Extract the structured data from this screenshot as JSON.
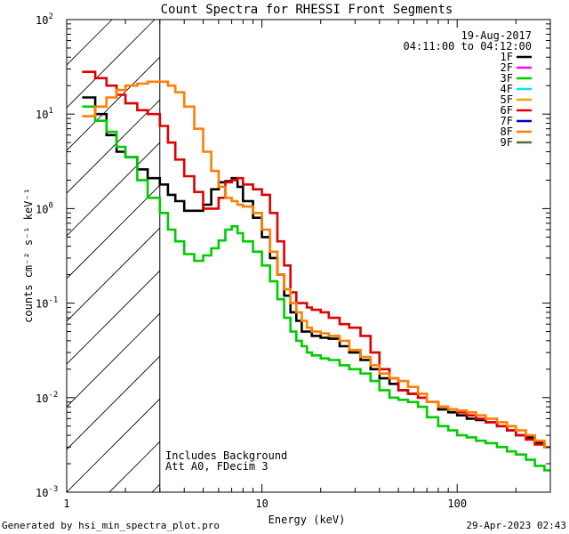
{
  "chart_data": {
    "type": "line",
    "title": "Count Spectra for RHESSI Front Segments",
    "xlabel": "Energy (keV)",
    "ylabel": "counts cm⁻² s⁻¹ keV⁻¹",
    "x_scale": "log",
    "y_scale": "log",
    "xlim": [
      1,
      300
    ],
    "ylim": [
      0.001,
      100
    ],
    "x_ticks": [
      {
        "value": 1,
        "label": "1"
      },
      {
        "value": 10,
        "label": "10"
      },
      {
        "value": 100,
        "label": "100"
      }
    ],
    "y_ticks": [
      {
        "value": 0.001,
        "base": "10",
        "exp": "-3"
      },
      {
        "value": 0.01,
        "base": "10",
        "exp": "-2"
      },
      {
        "value": 0.1,
        "base": "10",
        "exp": "-1"
      },
      {
        "value": 1,
        "base": "10",
        "exp": "0"
      },
      {
        "value": 10,
        "base": "10",
        "exp": "1"
      },
      {
        "value": 100,
        "base": "10",
        "exp": "2"
      }
    ],
    "attenuated_region": {
      "x_max": 3,
      "style": "hatched"
    },
    "date": "19-Aug-2017",
    "time_range": "04:11:00 to 04:12:00",
    "annotations": [
      "Includes Background",
      "Att A0, FDecim 3"
    ],
    "legend": [
      {
        "label": "1F",
        "color": "#000000"
      },
      {
        "label": "2F",
        "color": "#ff00ff"
      },
      {
        "label": "3F",
        "color": "#00cc00"
      },
      {
        "label": "4F",
        "color": "#00e5ee"
      },
      {
        "label": "5F",
        "color": "#f5a300"
      },
      {
        "label": "6F",
        "color": "#e00000"
      },
      {
        "label": "7F",
        "color": "#0000cc"
      },
      {
        "label": "8F",
        "color": "#ff7f00"
      },
      {
        "label": "9F",
        "color": "#556b2f"
      }
    ],
    "series": [
      {
        "name": "1F",
        "color": "#000000",
        "points": [
          [
            1.2,
            15
          ],
          [
            1.4,
            10
          ],
          [
            1.6,
            6
          ],
          [
            1.8,
            4
          ],
          [
            2,
            3.5
          ],
          [
            2.3,
            2.6
          ],
          [
            2.6,
            2.1
          ],
          [
            3,
            1.8
          ],
          [
            3.3,
            1.4
          ],
          [
            3.6,
            1.2
          ],
          [
            4,
            0.95
          ],
          [
            4.5,
            0.95
          ],
          [
            5,
            1.1
          ],
          [
            5.5,
            1.6
          ],
          [
            6,
            1.9
          ],
          [
            6.5,
            1.95
          ],
          [
            7,
            2.1
          ],
          [
            7.5,
            1.7
          ],
          [
            8,
            1.2
          ],
          [
            9,
            0.8
          ],
          [
            10,
            0.5
          ],
          [
            11,
            0.3
          ],
          [
            12,
            0.2
          ],
          [
            13,
            0.12
          ],
          [
            14,
            0.08
          ],
          [
            15,
            0.065
          ],
          [
            16,
            0.05
          ],
          [
            17,
            0.05
          ],
          [
            18,
            0.045
          ],
          [
            20,
            0.043
          ],
          [
            22,
            0.042
          ],
          [
            25,
            0.035
          ],
          [
            28,
            0.03
          ],
          [
            32,
            0.025
          ],
          [
            36,
            0.02
          ],
          [
            40,
            0.016
          ],
          [
            45,
            0.014
          ],
          [
            50,
            0.012
          ],
          [
            56,
            0.011
          ],
          [
            63,
            0.01
          ],
          [
            70,
            0.009
          ],
          [
            80,
            0.0075
          ],
          [
            90,
            0.007
          ],
          [
            100,
            0.0065
          ],
          [
            112,
            0.006
          ],
          [
            125,
            0.0058
          ],
          [
            140,
            0.0055
          ],
          [
            160,
            0.005
          ],
          [
            180,
            0.0045
          ],
          [
            200,
            0.004
          ],
          [
            225,
            0.0038
          ],
          [
            250,
            0.0033
          ],
          [
            280,
            0.003
          ]
        ]
      },
      {
        "name": "3F",
        "color": "#00cc00",
        "points": [
          [
            1.2,
            12
          ],
          [
            1.4,
            8.5
          ],
          [
            1.6,
            6.5
          ],
          [
            1.8,
            4.5
          ],
          [
            2,
            3.5
          ],
          [
            2.3,
            2
          ],
          [
            2.6,
            1.3
          ],
          [
            3,
            0.9
          ],
          [
            3.3,
            0.6
          ],
          [
            3.6,
            0.45
          ],
          [
            4,
            0.33
          ],
          [
            4.5,
            0.28
          ],
          [
            5,
            0.32
          ],
          [
            5.5,
            0.38
          ],
          [
            6,
            0.46
          ],
          [
            6.5,
            0.6
          ],
          [
            7,
            0.65
          ],
          [
            7.5,
            0.55
          ],
          [
            8,
            0.45
          ],
          [
            9,
            0.35
          ],
          [
            10,
            0.25
          ],
          [
            11,
            0.17
          ],
          [
            12,
            0.11
          ],
          [
            13,
            0.07
          ],
          [
            14,
            0.05
          ],
          [
            15,
            0.04
          ],
          [
            16,
            0.035
          ],
          [
            17,
            0.03
          ],
          [
            18,
            0.028
          ],
          [
            20,
            0.026
          ],
          [
            22,
            0.025
          ],
          [
            25,
            0.022
          ],
          [
            28,
            0.02
          ],
          [
            32,
            0.018
          ],
          [
            36,
            0.015
          ],
          [
            40,
            0.012
          ],
          [
            45,
            0.01
          ],
          [
            50,
            0.0095
          ],
          [
            56,
            0.009
          ],
          [
            63,
            0.008
          ],
          [
            70,
            0.0062
          ],
          [
            80,
            0.005
          ],
          [
            90,
            0.0045
          ],
          [
            100,
            0.004
          ],
          [
            112,
            0.0038
          ],
          [
            125,
            0.0035
          ],
          [
            140,
            0.0033
          ],
          [
            160,
            0.003
          ],
          [
            180,
            0.0027
          ],
          [
            200,
            0.0025
          ],
          [
            225,
            0.0022
          ],
          [
            250,
            0.0019
          ],
          [
            280,
            0.0017
          ]
        ]
      },
      {
        "name": "6F",
        "color": "#e00000",
        "points": [
          [
            1.2,
            28
          ],
          [
            1.4,
            24
          ],
          [
            1.6,
            20
          ],
          [
            1.8,
            16
          ],
          [
            2,
            13
          ],
          [
            2.3,
            11
          ],
          [
            2.6,
            10
          ],
          [
            3,
            7.5
          ],
          [
            3.3,
            5
          ],
          [
            3.6,
            3.3
          ],
          [
            4,
            2.2
          ],
          [
            4.5,
            1.5
          ],
          [
            5,
            1
          ],
          [
            5.5,
            1
          ],
          [
            6,
            1.3
          ],
          [
            6.5,
            1.9
          ],
          [
            7,
            2
          ],
          [
            7.5,
            2.1
          ],
          [
            8,
            1.8
          ],
          [
            9,
            1.6
          ],
          [
            10,
            1.4
          ],
          [
            11,
            0.9
          ],
          [
            12,
            0.45
          ],
          [
            13,
            0.25
          ],
          [
            14,
            0.13
          ],
          [
            15,
            0.1
          ],
          [
            16,
            0.1
          ],
          [
            17,
            0.09
          ],
          [
            18,
            0.085
          ],
          [
            20,
            0.08
          ],
          [
            22,
            0.07
          ],
          [
            25,
            0.06
          ],
          [
            28,
            0.055
          ],
          [
            32,
            0.045
          ],
          [
            36,
            0.03
          ],
          [
            40,
            0.02
          ],
          [
            45,
            0.016
          ],
          [
            50,
            0.012
          ],
          [
            56,
            0.011
          ],
          [
            63,
            0.01
          ],
          [
            70,
            0.009
          ],
          [
            80,
            0.008
          ],
          [
            90,
            0.0075
          ],
          [
            100,
            0.007
          ],
          [
            112,
            0.0065
          ],
          [
            125,
            0.006
          ],
          [
            140,
            0.0055
          ],
          [
            160,
            0.005
          ],
          [
            180,
            0.0045
          ],
          [
            200,
            0.004
          ],
          [
            225,
            0.0036
          ],
          [
            250,
            0.0032
          ],
          [
            280,
            0.003
          ]
        ]
      },
      {
        "name": "8F",
        "color": "#ff7f00",
        "points": [
          [
            1.2,
            9.5
          ],
          [
            1.4,
            12
          ],
          [
            1.6,
            15
          ],
          [
            1.8,
            18
          ],
          [
            2,
            20
          ],
          [
            2.3,
            21
          ],
          [
            2.6,
            22
          ],
          [
            3,
            22
          ],
          [
            3.3,
            20
          ],
          [
            3.6,
            17
          ],
          [
            4,
            12
          ],
          [
            4.5,
            7
          ],
          [
            5,
            4
          ],
          [
            5.5,
            2.5
          ],
          [
            6,
            1.7
          ],
          [
            6.5,
            1.3
          ],
          [
            7,
            1.2
          ],
          [
            7.5,
            1.1
          ],
          [
            8,
            1.05
          ],
          [
            9,
            0.9
          ],
          [
            10,
            0.6
          ],
          [
            11,
            0.35
          ],
          [
            12,
            0.2
          ],
          [
            13,
            0.14
          ],
          [
            14,
            0.1
          ],
          [
            15,
            0.08
          ],
          [
            16,
            0.065
          ],
          [
            17,
            0.055
          ],
          [
            18,
            0.05
          ],
          [
            20,
            0.048
          ],
          [
            22,
            0.045
          ],
          [
            25,
            0.04
          ],
          [
            28,
            0.032
          ],
          [
            32,
            0.027
          ],
          [
            36,
            0.022
          ],
          [
            40,
            0.018
          ],
          [
            45,
            0.016
          ],
          [
            50,
            0.015
          ],
          [
            56,
            0.013
          ],
          [
            63,
            0.011
          ],
          [
            70,
            0.009
          ],
          [
            80,
            0.008
          ],
          [
            90,
            0.0075
          ],
          [
            100,
            0.0073
          ],
          [
            112,
            0.007
          ],
          [
            125,
            0.0065
          ],
          [
            140,
            0.006
          ],
          [
            160,
            0.0055
          ],
          [
            180,
            0.005
          ],
          [
            200,
            0.0045
          ],
          [
            225,
            0.004
          ],
          [
            250,
            0.0035
          ],
          [
            280,
            0.003
          ]
        ]
      }
    ]
  },
  "footer": {
    "left": "Generated by hsi_min_spectra_plot.pro",
    "right": "29-Apr-2023 02:43"
  }
}
